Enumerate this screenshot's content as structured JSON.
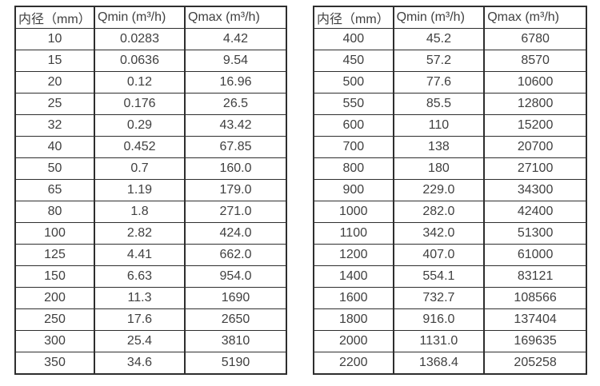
{
  "page": {
    "background_color": "#ffffff",
    "text_color": "#404040",
    "border_color": "#2e2e2e",
    "description": "Two side-by-side specification tables listing flow meter inner diameter vs minimum and maximum flow rates"
  },
  "tables": [
    {
      "name": "spec-table-left",
      "headers": [
        "内径（mm）",
        "Qmin (m³/h)",
        "Qmax (m³/h)"
      ],
      "rows": [
        [
          "10",
          "0.0283",
          "4.42"
        ],
        [
          "15",
          "0.0636",
          "9.54"
        ],
        [
          "20",
          "0.12",
          "16.96"
        ],
        [
          "25",
          "0.176",
          "26.5"
        ],
        [
          "32",
          "0.29",
          "43.42"
        ],
        [
          "40",
          "0.452",
          "67.85"
        ],
        [
          "50",
          "0.7",
          "160.0"
        ],
        [
          "65",
          "1.19",
          "179.0"
        ],
        [
          "80",
          "1.8",
          "271.0"
        ],
        [
          "100",
          "2.82",
          "424.0"
        ],
        [
          "125",
          "4.41",
          "662.0"
        ],
        [
          "150",
          "6.63",
          "954.0"
        ],
        [
          "200",
          "11.3",
          "1690"
        ],
        [
          "250",
          "17.6",
          "2650"
        ],
        [
          "300",
          "25.4",
          "3810"
        ],
        [
          "350",
          "34.6",
          "5190"
        ]
      ]
    },
    {
      "name": "spec-table-right",
      "headers": [
        "内径（mm）",
        "Qmin (m³/h)",
        "Qmax (m³/h)"
      ],
      "rows": [
        [
          "400",
          "45.2",
          "6780"
        ],
        [
          "450",
          "57.2",
          "8570"
        ],
        [
          "500",
          "77.6",
          "10600"
        ],
        [
          "550",
          "85.5",
          "12800"
        ],
        [
          "600",
          "110",
          "15200"
        ],
        [
          "700",
          "138",
          "20700"
        ],
        [
          "800",
          "180",
          "27100"
        ],
        [
          "900",
          "229.0",
          "34300"
        ],
        [
          "1000",
          "282.0",
          "42400"
        ],
        [
          "1100",
          "342.0",
          "51300"
        ],
        [
          "1200",
          "407.0",
          "61000"
        ],
        [
          "1400",
          "554.1",
          "83121"
        ],
        [
          "1600",
          "732.7",
          "108566"
        ],
        [
          "1800",
          "916.0",
          "137404"
        ],
        [
          "2000",
          "1131.0",
          "169635"
        ],
        [
          "2200",
          "1368.4",
          "205258"
        ]
      ]
    }
  ]
}
